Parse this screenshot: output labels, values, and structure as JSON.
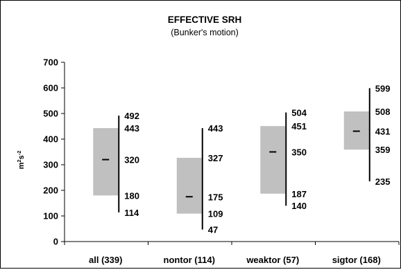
{
  "chart_data": {
    "type": "box",
    "title": "EFFECTIVE SRH",
    "subtitle": "(Bunker's motion)",
    "ylabel": {
      "base1": "m",
      "sup1": "2",
      "base2": "s",
      "sup2": "-2"
    },
    "ylim": [
      0,
      700
    ],
    "yticks": [
      0,
      100,
      200,
      300,
      400,
      500,
      600,
      700
    ],
    "grid": false,
    "legend": "none",
    "box_color": "#c0c0c0",
    "categories": [
      "all (339)",
      "nontor (114)",
      "weaktor (57)",
      "sigtor (168)"
    ],
    "series": [
      {
        "category": "all (339)",
        "whisker_low": 114,
        "q1": 180,
        "median": 320,
        "q3": 443,
        "whisker_high": 492
      },
      {
        "category": "nontor (114)",
        "whisker_low": 47,
        "q1": 109,
        "median": 175,
        "q3": 327,
        "whisker_high": 443
      },
      {
        "category": "weaktor (57)",
        "whisker_low": 140,
        "q1": 187,
        "median": 350,
        "q3": 451,
        "whisker_high": 504
      },
      {
        "category": "sigtor (168)",
        "whisker_low": 235,
        "q1": 359,
        "median": 431,
        "q3": 508,
        "whisker_high": 599
      }
    ]
  }
}
